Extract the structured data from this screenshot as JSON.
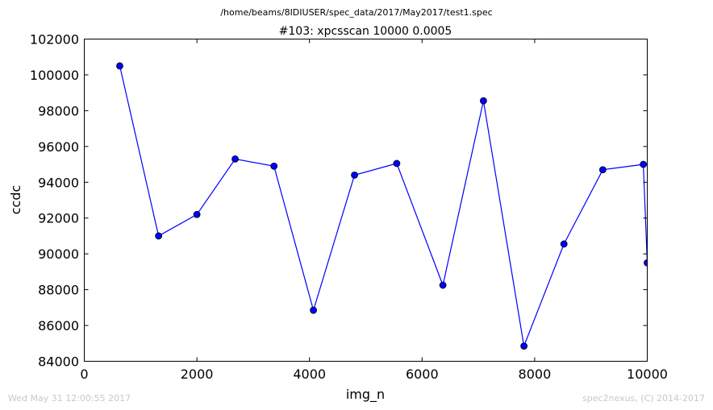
{
  "chart_data": {
    "type": "line",
    "suptitle": "/home/beams/8IDIUSER/spec_data/2017/May2017/test1.spec",
    "title": "#103: xpcsscan 10000 0.0005",
    "xlabel": "img_n",
    "ylabel": "ccdc",
    "xlim": [
      0,
      10000
    ],
    "ylim": [
      84000,
      102000
    ],
    "xticks": [
      0,
      2000,
      4000,
      6000,
      8000,
      10000
    ],
    "yticks": [
      84000,
      86000,
      88000,
      90000,
      92000,
      94000,
      96000,
      98000,
      100000,
      102000
    ],
    "grid": false,
    "legend": false,
    "series": [
      {
        "color": "#0000ff",
        "marker": "circle",
        "x": [
          630,
          1320,
          2000,
          2680,
          3370,
          4070,
          4800,
          5550,
          6370,
          7090,
          7810,
          8520,
          9210,
          9930,
          10000
        ],
        "y": [
          100500,
          91000,
          92200,
          95300,
          94900,
          86850,
          94400,
          95050,
          88250,
          98550,
          84850,
          90550,
          94700,
          95000,
          89500
        ]
      }
    ]
  },
  "footer": {
    "left": "Wed May 31 12:00:55 2017",
    "right": "spec2nexus, (C) 2014-2017"
  }
}
